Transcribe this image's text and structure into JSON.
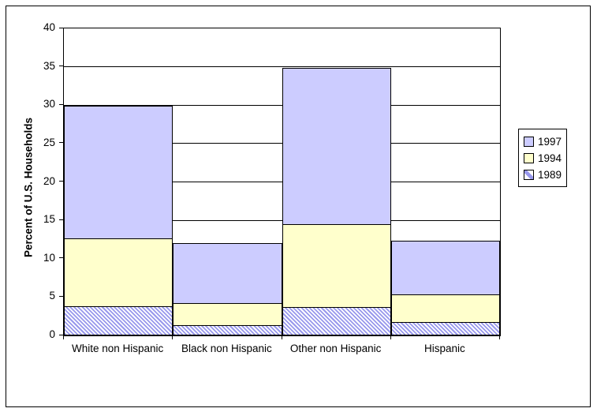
{
  "window": {
    "background": "#ffffff",
    "border_color": "#000000"
  },
  "chart_data": {
    "type": "bar",
    "stacked": true,
    "title": "",
    "xlabel": "",
    "ylabel": "Percent of U.S. Households",
    "categories": [
      "White non Hispanic",
      "Black non Hispanic",
      "Other non Hispanic",
      "Hispanic"
    ],
    "series": [
      {
        "name": "1989",
        "fill": "hatch",
        "color": "#9898ec",
        "background": "#ffffff",
        "values": [
          3.7,
          1.2,
          3.6,
          1.6
        ]
      },
      {
        "name": "1994",
        "fill": "solid",
        "color": "#ffffcc",
        "values": [
          8.8,
          2.9,
          10.8,
          3.6
        ]
      },
      {
        "name": "1997",
        "fill": "solid",
        "color": "#ccccff",
        "values": [
          17.3,
          7.8,
          20.4,
          7.0
        ]
      }
    ],
    "stack_order_bottom_to_top": [
      "1989",
      "1994",
      "1997"
    ],
    "cumulative_stack_tops": {
      "White non Hispanic": [
        3.7,
        12.5,
        29.8
      ],
      "Black non Hispanic": [
        1.2,
        4.1,
        11.9
      ],
      "Other non Hispanic": [
        3.6,
        14.4,
        34.8
      ],
      "Hispanic": [
        1.6,
        5.2,
        12.2
      ]
    },
    "ylim": [
      0,
      40
    ],
    "yticks": [
      0,
      5,
      10,
      15,
      20,
      25,
      30,
      35,
      40
    ],
    "grid": true,
    "bar_gap": 0,
    "segment_border_color": "#000000",
    "legend": {
      "position": "right",
      "entries": [
        "1997",
        "1994",
        "1989"
      ]
    }
  }
}
